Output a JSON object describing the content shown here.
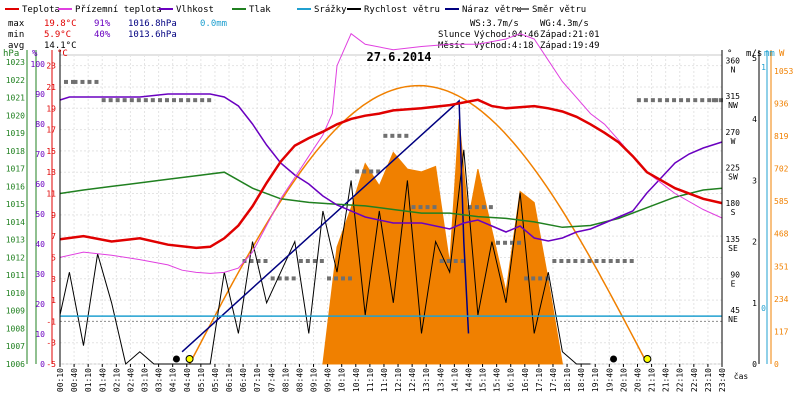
{
  "legend": [
    {
      "label": "Teplota",
      "color": "#e00000"
    },
    {
      "label": "Přízemní teplota",
      "color": "#e040e0"
    },
    {
      "label": "Vlhkost",
      "color": "#6a00c0"
    },
    {
      "label": "Tlak",
      "color": "#208020"
    },
    {
      "label": "Srážky",
      "color": "#20a0d0"
    },
    {
      "label": "Rychlost větru",
      "color": "#000000"
    },
    {
      "label": "Náraz větru",
      "color": "#000080"
    },
    {
      "label": "Směr větru",
      "color": "#707070"
    }
  ],
  "stats": {
    "max": {
      "label": "max",
      "temp": "19.8°C",
      "hum": "91%",
      "press": "1016.8hPa",
      "rain": "0.0mm"
    },
    "min": {
      "label": "min",
      "temp": "5.9°C",
      "hum": "40%",
      "press": "1013.6hPa"
    },
    "avg": {
      "label": "avg",
      "temp": "14.1°C"
    }
  },
  "wind_info": {
    "ws": "WS:3.7m/s",
    "wg": "WG:4.3m/s"
  },
  "sun": {
    "label": "Slunce",
    "rise": "Východ:04:46",
    "set": "Západ:21:01"
  },
  "moon": {
    "label": "Měsíc",
    "rise": "Východ:4:18",
    "set": "Západ:19:49"
  },
  "colors": {
    "temp": "#e00000",
    "ground": "#e040e0",
    "hum": "#6a00c0",
    "press": "#208020",
    "rain": "#20a0d0",
    "wind": "#000000",
    "gust": "#000080",
    "dir": "#707070",
    "solar": "#f08000",
    "sun_icon": "#ffff00"
  },
  "axes": {
    "hpa": {
      "unit": "hPa",
      "ticks": [
        "1023",
        "1022",
        "1021",
        "1020",
        "1019",
        "1018",
        "1017",
        "1016",
        "1015",
        "1014",
        "1013",
        "1012",
        "1011",
        "1010",
        "1009",
        "1008",
        "1007",
        "1006"
      ]
    },
    "pct": {
      "unit": "%",
      "ticks": [
        "100",
        "90",
        "80",
        "70",
        "60",
        "50",
        "40",
        "30",
        "20",
        "10",
        "0"
      ]
    },
    "degc": {
      "unit": "°C",
      "ticks": [
        "23",
        "21",
        "19",
        "17",
        "15",
        "13",
        "11",
        "9",
        "7",
        "5",
        "3",
        "1",
        "-1",
        "-3",
        "-5"
      ]
    },
    "deg": {
      "unit": "°",
      "ticks": [
        {
          "v": "360",
          "c": "N"
        },
        {
          "v": "315",
          "c": "NW"
        },
        {
          "v": "270",
          "c": "W"
        },
        {
          "v": "225",
          "c": "SW"
        },
        {
          "v": "180",
          "c": "S"
        },
        {
          "v": "135",
          "c": "SE"
        },
        {
          "v": "90",
          "c": "E"
        },
        {
          "v": "45",
          "c": "NE"
        }
      ]
    },
    "ms": {
      "unit": "m/s",
      "ticks": [
        "5",
        "4",
        "3",
        "2",
        "1",
        "0"
      ]
    },
    "mm": {
      "unit": "mm",
      "ticks": [
        "1",
        "0"
      ]
    },
    "wm2": {
      "unit": "W",
      "ticks": [
        "1053",
        "936",
        "819",
        "702",
        "585",
        "468",
        "351",
        "234",
        "117",
        "0"
      ]
    }
  },
  "xaxis": {
    "unit": "čas",
    "ticks": [
      "00:10",
      "00:40",
      "01:10",
      "01:40",
      "02:10",
      "02:40",
      "03:10",
      "03:40",
      "04:10",
      "04:40",
      "05:10",
      "05:40",
      "06:10",
      "06:40",
      "07:10",
      "07:40",
      "08:10",
      "08:40",
      "09:10",
      "09:40",
      "10:10",
      "10:40",
      "11:10",
      "11:40",
      "12:10",
      "12:40",
      "13:10",
      "13:40",
      "14:10",
      "14:40",
      "15:10",
      "15:40",
      "16:10",
      "16:40",
      "17:10",
      "17:40",
      "18:10",
      "18:40",
      "19:10",
      "19:40",
      "20:10",
      "20:40",
      "21:10",
      "21:40",
      "22:10",
      "22:40",
      "23:10",
      "23:40"
    ]
  },
  "chart_data": {
    "type": "line",
    "title": "27.6.2014",
    "x_range": [
      "00:10",
      "23:40"
    ],
    "series": [
      {
        "name": "Teplota",
        "unit": "°C",
        "x": [
          "00:10",
          "01:00",
          "02:00",
          "03:00",
          "04:00",
          "05:00",
          "05:30",
          "06:00",
          "06:30",
          "07:00",
          "07:30",
          "08:00",
          "08:30",
          "09:00",
          "09:30",
          "10:00",
          "10:30",
          "11:00",
          "11:30",
          "12:00",
          "13:00",
          "14:00",
          "15:00",
          "15:30",
          "16:00",
          "17:00",
          "17:30",
          "18:00",
          "18:30",
          "19:00",
          "19:30",
          "20:00",
          "20:30",
          "21:00",
          "22:00",
          "23:00",
          "23:40"
        ],
        "values": [
          6.7,
          7.0,
          6.5,
          6.8,
          6.2,
          5.9,
          6.0,
          6.8,
          8.0,
          9.8,
          12.0,
          14.0,
          15.5,
          16.2,
          16.8,
          17.5,
          18.0,
          18.3,
          18.5,
          18.8,
          19.0,
          19.3,
          19.8,
          19.2,
          19.0,
          19.2,
          19.0,
          18.7,
          18.2,
          17.5,
          16.7,
          15.8,
          14.5,
          13.0,
          11.5,
          10.5,
          10.1
        ]
      },
      {
        "name": "Přízemní teplota",
        "unit": "°C",
        "x": [
          "00:10",
          "01:00",
          "02:00",
          "03:00",
          "04:00",
          "04:30",
          "05:00",
          "05:30",
          "06:00",
          "06:30",
          "07:00",
          "07:30",
          "08:00",
          "08:30",
          "09:00",
          "09:30",
          "09:50",
          "10:00",
          "10:30",
          "11:00",
          "12:00",
          "13:00",
          "14:00",
          "15:00",
          "16:00",
          "16:30",
          "17:00",
          "17:30",
          "18:00",
          "18:30",
          "19:00",
          "19:30",
          "20:00",
          "20:30",
          "21:00",
          "22:00",
          "23:00",
          "23:40"
        ],
        "values": [
          5.0,
          5.5,
          5.2,
          4.8,
          4.3,
          3.8,
          3.6,
          3.5,
          3.6,
          4.0,
          5.5,
          8.0,
          10.5,
          12.5,
          14.5,
          16.5,
          18.5,
          23.0,
          26.0,
          25.0,
          24.5,
          24.8,
          25.0,
          25.0,
          25.5,
          26.0,
          25.5,
          23.5,
          21.5,
          20.0,
          18.5,
          17.5,
          16.0,
          14.5,
          13.0,
          11.0,
          9.5,
          8.7
        ]
      },
      {
        "name": "Vlhkost",
        "unit": "%",
        "x": [
          "00:10",
          "00:30",
          "01:00",
          "02:00",
          "03:00",
          "04:00",
          "05:00",
          "05:30",
          "06:00",
          "06:30",
          "07:00",
          "07:30",
          "08:00",
          "08:30",
          "09:00",
          "09:30",
          "10:00",
          "11:00",
          "12:00",
          "13:00",
          "14:00",
          "14:30",
          "15:00",
          "15:30",
          "16:00",
          "16:30",
          "17:00",
          "17:30",
          "18:00",
          "18:30",
          "19:00",
          "19:30",
          "20:00",
          "20:30",
          "21:00",
          "21:30",
          "22:00",
          "22:30",
          "23:00",
          "23:40"
        ],
        "values": [
          88,
          89,
          89,
          89,
          89,
          90,
          90,
          90,
          89,
          86,
          80,
          73,
          67,
          63,
          60,
          56,
          53,
          49,
          47,
          47,
          45,
          47,
          48,
          46,
          44,
          46,
          42,
          41,
          42,
          44,
          45,
          47,
          49,
          51,
          57,
          62,
          67,
          70,
          72,
          74
        ]
      },
      {
        "name": "Tlak",
        "unit": "hPa",
        "x": [
          "00:10",
          "01:00",
          "02:00",
          "03:00",
          "04:00",
          "05:00",
          "06:00",
          "07:00",
          "08:00",
          "09:00",
          "10:00",
          "11:00",
          "12:00",
          "13:00",
          "14:00",
          "15:00",
          "16:00",
          "17:00",
          "18:00",
          "19:00",
          "20:00",
          "21:00",
          "22:00",
          "23:00",
          "23:40"
        ],
        "values": [
          1015.6,
          1015.8,
          1016.0,
          1016.2,
          1016.4,
          1016.6,
          1016.8,
          1015.9,
          1015.3,
          1015.1,
          1015.0,
          1014.9,
          1014.7,
          1014.5,
          1014.5,
          1014.3,
          1014.2,
          1014.0,
          1013.7,
          1013.8,
          1014.2,
          1014.8,
          1015.4,
          1015.8,
          1015.9
        ]
      },
      {
        "name": "Srážky",
        "unit": "mm",
        "x": [
          "00:10",
          "23:40"
        ],
        "values": [
          0.0,
          0.0
        ]
      },
      {
        "name": "Rychlost větru",
        "unit": "m/s",
        "x": [
          "00:10",
          "00:30",
          "01:00",
          "01:30",
          "02:00",
          "02:30",
          "03:00",
          "03:30",
          "04:00",
          "04:30",
          "05:00",
          "05:30",
          "06:00",
          "06:30",
          "07:00",
          "07:30",
          "08:00",
          "08:30",
          "09:00",
          "09:30",
          "10:00",
          "10:30",
          "11:00",
          "11:30",
          "12:00",
          "12:30",
          "13:00",
          "13:30",
          "14:00",
          "14:30",
          "15:00",
          "15:30",
          "16:00",
          "16:30",
          "17:00",
          "17:30",
          "18:00",
          "18:30",
          "19:00"
        ],
        "values": [
          0.8,
          1.5,
          0.3,
          1.8,
          1.0,
          0.0,
          0.2,
          0.0,
          0.0,
          0.0,
          0.0,
          0.0,
          1.5,
          0.5,
          2.0,
          1.0,
          1.5,
          2.0,
          0.5,
          2.5,
          1.5,
          3.0,
          0.8,
          2.5,
          1.0,
          3.0,
          0.5,
          2.0,
          1.5,
          3.5,
          0.8,
          2.0,
          1.0,
          2.8,
          0.5,
          1.5,
          0.2,
          0.0,
          0.0
        ]
      },
      {
        "name": "Náraz větru",
        "unit": "m/s",
        "x": [
          "04:30",
          "14:20",
          "14:30",
          "14:40"
        ],
        "values": [
          0.2,
          4.3,
          2.0,
          0.5
        ]
      },
      {
        "name": "Směr větru",
        "unit": "°",
        "type": "scatter",
        "x": [
          "00:10",
          "01:00",
          "02:00",
          "03:00",
          "04:00",
          "05:00",
          "07:00",
          "08:00",
          "09:00",
          "10:00",
          "11:00",
          "12:00",
          "13:00",
          "14:00",
          "15:00",
          "16:00",
          "17:00",
          "18:00",
          "19:00",
          "20:00",
          "21:00",
          "22:00",
          "23:00",
          "23:40"
        ],
        "values": [
          338,
          338,
          315,
          315,
          315,
          315,
          112,
          90,
          112,
          90,
          225,
          270,
          180,
          112,
          180,
          135,
          90,
          112,
          112,
          112,
          315,
          315,
          315,
          315
        ]
      },
      {
        "name": "Sluneční záření",
        "unit": "W/m²",
        "type": "area",
        "x": [
          "09:30",
          "10:00",
          "10:30",
          "11:00",
          "11:30",
          "12:00",
          "12:30",
          "13:00",
          "13:30",
          "14:00",
          "14:20",
          "14:40",
          "15:00",
          "15:30",
          "16:00",
          "16:30",
          "17:00",
          "17:30",
          "18:00"
        ],
        "values": [
          0,
          420,
          560,
          720,
          640,
          760,
          700,
          690,
          710,
          360,
          880,
          520,
          700,
          480,
          260,
          620,
          580,
          300,
          0
        ]
      }
    ]
  }
}
